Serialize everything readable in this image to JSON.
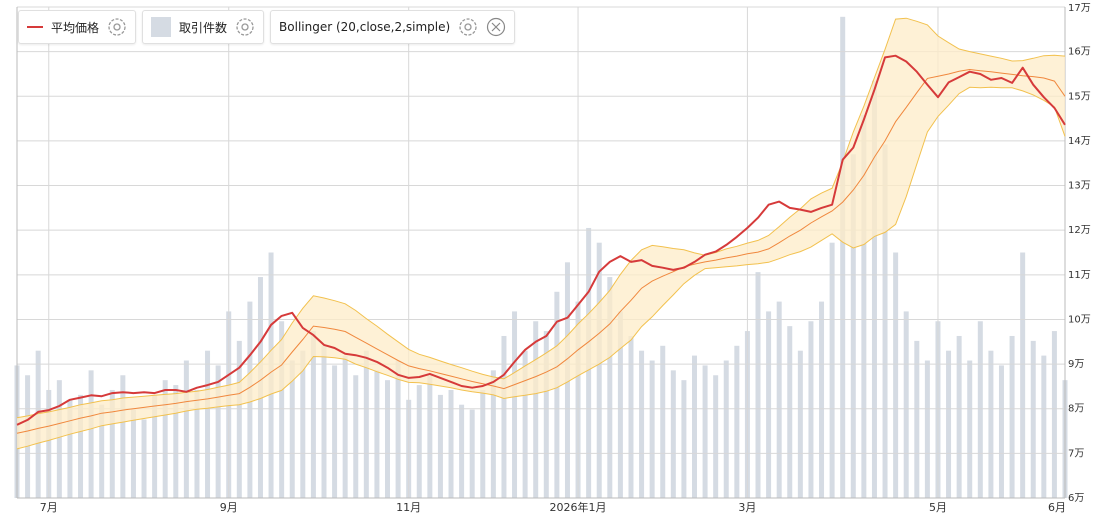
{
  "chart_data": {
    "type": "line",
    "categories": [
      null,
      null,
      null,
      "7月",
      null,
      null,
      null,
      null,
      null,
      null,
      null,
      null,
      null,
      null,
      null,
      null,
      null,
      null,
      null,
      null,
      "9月",
      null,
      null,
      null,
      null,
      null,
      null,
      null,
      null,
      null,
      null,
      null,
      null,
      null,
      null,
      null,
      null,
      "11月",
      null,
      null,
      null,
      null,
      null,
      null,
      null,
      null,
      null,
      null,
      null,
      null,
      null,
      null,
      null,
      "2026年1月",
      null,
      null,
      null,
      null,
      null,
      null,
      null,
      null,
      null,
      null,
      null,
      null,
      null,
      null,
      null,
      "3月",
      null,
      null,
      null,
      null,
      null,
      null,
      null,
      null,
      null,
      null,
      null,
      null,
      null,
      null,
      null,
      null,
      null,
      "5月",
      null,
      null,
      null,
      null,
      null,
      null,
      null,
      null,
      null,
      null,
      null,
      "6月"
    ],
    "ylim": [
      6,
      17
    ],
    "yticks": [
      {
        "value": 6,
        "label": "6万"
      },
      {
        "value": 7,
        "label": "7万"
      },
      {
        "value": 8,
        "label": "8万"
      },
      {
        "value": 9,
        "label": "9万"
      },
      {
        "value": 10,
        "label": "10万"
      },
      {
        "value": 11,
        "label": "11万"
      },
      {
        "value": 12,
        "label": "12万"
      },
      {
        "value": 13,
        "label": "13万"
      },
      {
        "value": 14,
        "label": "14万"
      },
      {
        "value": 15,
        "label": "15万"
      },
      {
        "value": 16,
        "label": "16万"
      },
      {
        "value": 17,
        "label": "17万"
      }
    ],
    "y2lim": [
      0,
      100
    ],
    "grid": true,
    "series": [
      {
        "name": "平均価格",
        "color": "#d63a3a",
        "values": [
          7.64,
          7.75,
          7.93,
          7.97,
          8.06,
          8.2,
          8.25,
          8.3,
          8.28,
          8.35,
          8.37,
          8.35,
          8.37,
          8.35,
          8.42,
          8.42,
          8.38,
          8.47,
          8.53,
          8.6,
          8.76,
          8.92,
          9.2,
          9.5,
          9.88,
          10.08,
          10.15,
          9.81,
          9.65,
          9.43,
          9.36,
          9.23,
          9.2,
          9.14,
          9.05,
          8.92,
          8.76,
          8.69,
          8.71,
          8.78,
          8.69,
          8.6,
          8.51,
          8.47,
          8.51,
          8.6,
          8.76,
          9.05,
          9.32,
          9.5,
          9.63,
          9.95,
          10.04,
          10.33,
          10.62,
          11.07,
          11.29,
          11.42,
          11.29,
          11.33,
          11.2,
          11.16,
          11.11,
          11.16,
          11.29,
          11.45,
          11.52,
          11.67,
          11.85,
          12.05,
          12.28,
          12.57,
          12.64,
          12.5,
          12.46,
          12.41,
          12.5,
          12.57,
          13.58,
          13.85,
          14.48,
          15.15,
          15.87,
          15.91,
          15.78,
          15.55,
          15.26,
          14.98,
          15.31,
          15.43,
          15.55,
          15.5,
          15.37,
          15.41,
          15.3,
          15.64,
          15.26,
          14.98,
          14.74,
          14.36
        ]
      },
      {
        "name": "取引件数",
        "color": "#d5dbe3",
        "axis": "y2",
        "values": [
          27,
          25,
          30,
          22,
          24,
          20,
          21,
          26,
          19,
          22,
          25,
          18,
          16,
          21,
          24,
          23,
          28,
          22,
          30,
          27,
          38,
          32,
          40,
          45,
          50,
          36,
          28,
          30,
          34,
          31,
          27,
          29,
          25,
          30,
          26,
          24,
          28,
          20,
          23,
          25,
          21,
          22,
          19,
          18,
          22,
          26,
          33,
          38,
          30,
          36,
          34,
          42,
          48,
          40,
          55,
          52,
          45,
          38,
          33,
          30,
          28,
          31,
          26,
          24,
          29,
          27,
          25,
          28,
          31,
          34,
          46,
          38,
          40,
          35,
          30,
          36,
          40,
          52,
          98,
          70,
          78,
          85,
          72,
          50,
          38,
          32,
          28,
          36,
          30,
          33,
          28,
          36,
          30,
          27,
          33,
          50,
          32,
          29,
          34,
          24
        ]
      }
    ],
    "bollinger": {
      "name": "Bollinger (20,close,2,simple)",
      "color": "#f2c14e",
      "middle_color": "#f0883e",
      "fill": "#fdecc8",
      "middle": [
        7.45,
        7.5,
        7.56,
        7.61,
        7.67,
        7.73,
        7.79,
        7.84,
        7.9,
        7.93,
        7.97,
        8.0,
        8.03,
        8.06,
        8.09,
        8.12,
        8.16,
        8.19,
        8.22,
        8.26,
        8.3,
        8.34,
        8.48,
        8.64,
        8.82,
        8.98,
        9.27,
        9.55,
        9.85,
        9.82,
        9.78,
        9.73,
        9.6,
        9.47,
        9.34,
        9.21,
        9.08,
        8.96,
        8.9,
        8.85,
        8.79,
        8.73,
        8.67,
        8.61,
        8.56,
        8.51,
        8.45,
        8.54,
        8.63,
        8.72,
        8.82,
        8.94,
        9.12,
        9.32,
        9.5,
        9.69,
        9.9,
        10.18,
        10.43,
        10.7,
        10.86,
        10.97,
        11.07,
        11.18,
        11.24,
        11.29,
        11.33,
        11.38,
        11.42,
        11.47,
        11.51,
        11.58,
        11.72,
        11.87,
        12.0,
        12.16,
        12.3,
        12.43,
        12.63,
        12.9,
        13.23,
        13.64,
        14.0,
        14.43,
        14.75,
        15.08,
        15.4,
        15.45,
        15.5,
        15.56,
        15.6,
        15.57,
        15.55,
        15.52,
        15.49,
        15.46,
        15.44,
        15.41,
        15.34,
        15.0
      ],
      "upper": [
        7.8,
        7.84,
        7.89,
        7.93,
        7.98,
        8.03,
        8.09,
        8.13,
        8.18,
        8.2,
        8.24,
        8.26,
        8.28,
        8.3,
        8.32,
        8.34,
        8.37,
        8.39,
        8.43,
        8.48,
        8.53,
        8.59,
        8.81,
        9.05,
        9.31,
        9.55,
        9.92,
        10.25,
        10.53,
        10.48,
        10.42,
        10.35,
        10.2,
        10.02,
        9.85,
        9.67,
        9.5,
        9.33,
        9.22,
        9.15,
        9.07,
        8.99,
        8.92,
        8.84,
        8.77,
        8.71,
        8.67,
        8.81,
        8.96,
        9.1,
        9.25,
        9.41,
        9.64,
        9.9,
        10.13,
        10.38,
        10.65,
        11.01,
        11.32,
        11.56,
        11.66,
        11.63,
        11.59,
        11.56,
        11.49,
        11.44,
        11.5,
        11.58,
        11.64,
        11.71,
        11.77,
        11.88,
        12.08,
        12.29,
        12.48,
        12.7,
        12.83,
        12.94,
        13.53,
        14.2,
        14.78,
        15.42,
        16.05,
        16.73,
        16.75,
        16.68,
        16.6,
        16.35,
        16.2,
        16.06,
        16.0,
        15.95,
        15.9,
        15.85,
        15.79,
        15.8,
        15.85,
        15.91,
        15.92,
        15.9
      ],
      "lower": [
        7.1,
        7.16,
        7.23,
        7.29,
        7.36,
        7.43,
        7.49,
        7.55,
        7.62,
        7.66,
        7.7,
        7.74,
        7.78,
        7.82,
        7.86,
        7.9,
        7.95,
        7.99,
        8.01,
        8.04,
        8.07,
        8.09,
        8.15,
        8.23,
        8.33,
        8.41,
        8.62,
        8.85,
        9.17,
        9.16,
        9.14,
        9.11,
        9.0,
        8.92,
        8.83,
        8.75,
        8.66,
        8.59,
        8.58,
        8.55,
        8.51,
        8.47,
        8.42,
        8.38,
        8.35,
        8.31,
        8.23,
        8.27,
        8.3,
        8.34,
        8.39,
        8.47,
        8.6,
        8.74,
        8.87,
        9.0,
        9.15,
        9.35,
        9.54,
        9.84,
        10.06,
        10.31,
        10.55,
        10.8,
        10.99,
        11.14,
        11.16,
        11.18,
        11.2,
        11.23,
        11.25,
        11.28,
        11.36,
        11.45,
        11.52,
        11.62,
        11.77,
        11.92,
        11.73,
        11.6,
        11.68,
        11.86,
        11.95,
        12.13,
        12.75,
        13.48,
        14.2,
        14.55,
        14.8,
        15.06,
        15.2,
        15.19,
        15.2,
        15.19,
        15.19,
        15.12,
        15.03,
        14.91,
        14.76,
        14.1
      ]
    }
  }
}
